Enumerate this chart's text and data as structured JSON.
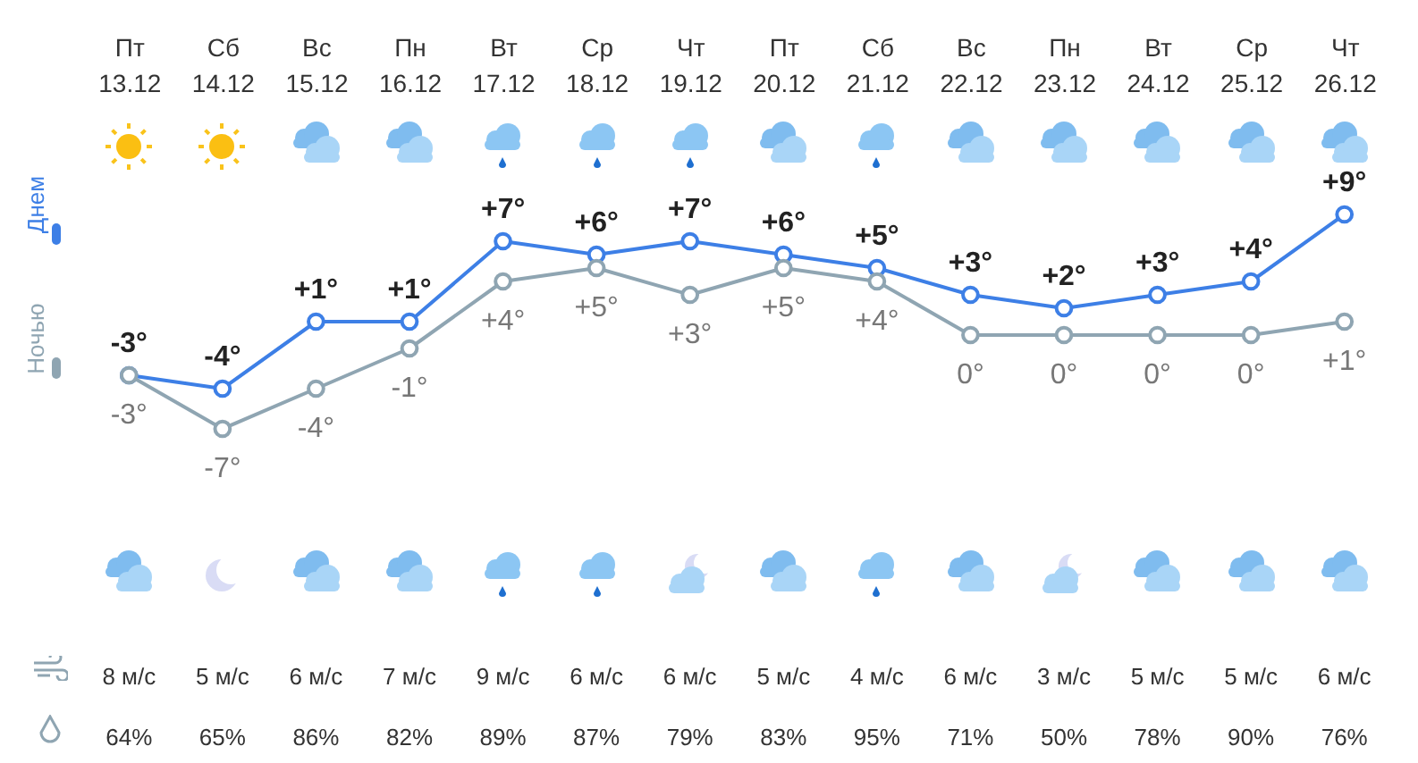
{
  "chart_data": [
    {
      "type": "line",
      "categories": [
        "Пт 13.12",
        "Сб 14.12",
        "Вс 15.12",
        "Пн 16.12",
        "Вт 17.12",
        "Ср 18.12",
        "Чт 19.12",
        "Пт 20.12",
        "Сб 21.12",
        "Вс 22.12",
        "Пн 23.12",
        "Вт 24.12",
        "Ср 25.12",
        "Чт 26.12"
      ],
      "series": [
        {
          "name": "Днем",
          "color": "#3d7fe6",
          "values": [
            -3,
            -4,
            1,
            1,
            7,
            6,
            7,
            6,
            5,
            3,
            2,
            3,
            4,
            9
          ],
          "value_labels": [
            "-3°",
            "-4°",
            "+1°",
            "+1°",
            "+7°",
            "+6°",
            "+7°",
            "+6°",
            "+5°",
            "+3°",
            "+2°",
            "+3°",
            "+4°",
            "+9°"
          ]
        },
        {
          "name": "Ночью",
          "color": "#8fa5b2",
          "values": [
            -3,
            -7,
            -4,
            -1,
            4,
            5,
            3,
            5,
            4,
            0,
            0,
            0,
            0,
            1
          ],
          "value_labels": [
            "-3°",
            "-7°",
            "-4°",
            "-1°",
            "+4°",
            "+5°",
            "+3°",
            "+5°",
            "+4°",
            "0°",
            "0°",
            "0°",
            "0°",
            "+1°"
          ]
        }
      ],
      "marker": "circle",
      "legend": "left",
      "tick_labels": "x"
    },
    {
      "type": "other",
      "annotations": [
        "8 м/с",
        "5 м/с",
        "6 м/с",
        "7 м/с",
        "9 м/с",
        "6 м/с",
        "6 м/с",
        "5 м/с",
        "4 м/с",
        "6 м/с",
        "3 м/с",
        "5 м/с",
        "5 м/с",
        "6 м/с",
        "64%",
        "65%",
        "86%",
        "82%",
        "89%",
        "87%",
        "79%",
        "83%",
        "95%",
        "71%",
        "50%",
        "78%",
        "90%",
        "76%"
      ]
    }
  ]
}
